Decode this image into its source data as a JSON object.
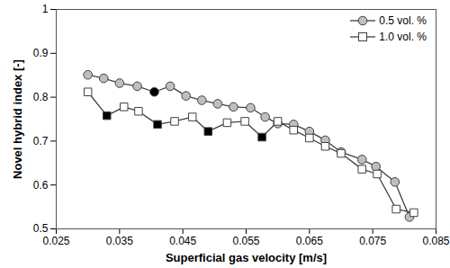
{
  "chart_data": {
    "type": "line",
    "x_label": "Superficial gas velocity [m/s]",
    "y_label": "Novel hybrid index [-]",
    "xlim": [
      0.025,
      0.085
    ],
    "xticks": [
      0.025,
      0.035,
      0.045,
      0.055,
      0.065,
      0.075,
      0.085
    ],
    "ylim": [
      0.5,
      1
    ],
    "yticks": [
      0.5,
      0.6,
      0.7,
      0.8,
      0.9,
      1
    ],
    "grid": false,
    "legend": "upper right",
    "series": [
      {
        "name": "0.5 vol. %",
        "color": "#404040",
        "marker": "circle",
        "line_style": "solid",
        "x": [
          0.03,
          0.0325,
          0.035,
          0.0378,
          0.0405,
          0.043,
          0.0455,
          0.048,
          0.0505,
          0.053,
          0.0557,
          0.058,
          0.06,
          0.0625,
          0.065,
          0.0675,
          0.07,
          0.0733,
          0.0755,
          0.0785,
          0.0808
        ],
        "values": [
          0.851,
          0.843,
          0.832,
          0.825,
          0.812,
          0.825,
          0.803,
          0.793,
          0.785,
          0.778,
          0.776,
          0.755,
          0.74,
          0.738,
          0.722,
          0.702,
          0.675,
          0.658,
          0.642,
          0.607,
          0.527
        ],
        "colors": [
          "#bfbfbf",
          "#bfbfbf",
          "#bfbfbf",
          "#bfbfbf",
          "#000000",
          "#bfbfbf",
          "#bfbfbf",
          "#bfbfbf",
          "#bfbfbf",
          "#bfbfbf",
          "#bfbfbf",
          "#bfbfbf",
          "#bfbfbf",
          "#bfbfbf",
          "#bfbfbf",
          "#bfbfbf",
          "#bfbfbf",
          "#bfbfbf",
          "#bfbfbf",
          "#bfbfbf",
          "#bfbfbf"
        ]
      },
      {
        "name": "1.0 vol. %",
        "color": "#404040",
        "marker": "square",
        "line_style": "solid",
        "x": [
          0.03,
          0.033,
          0.0357,
          0.038,
          0.041,
          0.0437,
          0.0465,
          0.049,
          0.052,
          0.0548,
          0.0575,
          0.06,
          0.0625,
          0.065,
          0.0675,
          0.07,
          0.0733,
          0.0757,
          0.0787,
          0.0815
        ],
        "values": [
          0.812,
          0.758,
          0.778,
          0.768,
          0.738,
          0.745,
          0.755,
          0.722,
          0.742,
          0.745,
          0.709,
          0.745,
          0.725,
          0.707,
          0.688,
          0.672,
          0.636,
          0.625,
          0.545,
          0.537
        ],
        "colors": [
          "#ffffff",
          "#000000",
          "#ffffff",
          "#ffffff",
          "#000000",
          "#ffffff",
          "#ffffff",
          "#000000",
          "#ffffff",
          "#ffffff",
          "#000000",
          "#ffffff",
          "#ffffff",
          "#ffffff",
          "#ffffff",
          "#ffffff",
          "#ffffff",
          "#ffffff",
          "#ffffff",
          "#ffffff"
        ]
      }
    ]
  }
}
